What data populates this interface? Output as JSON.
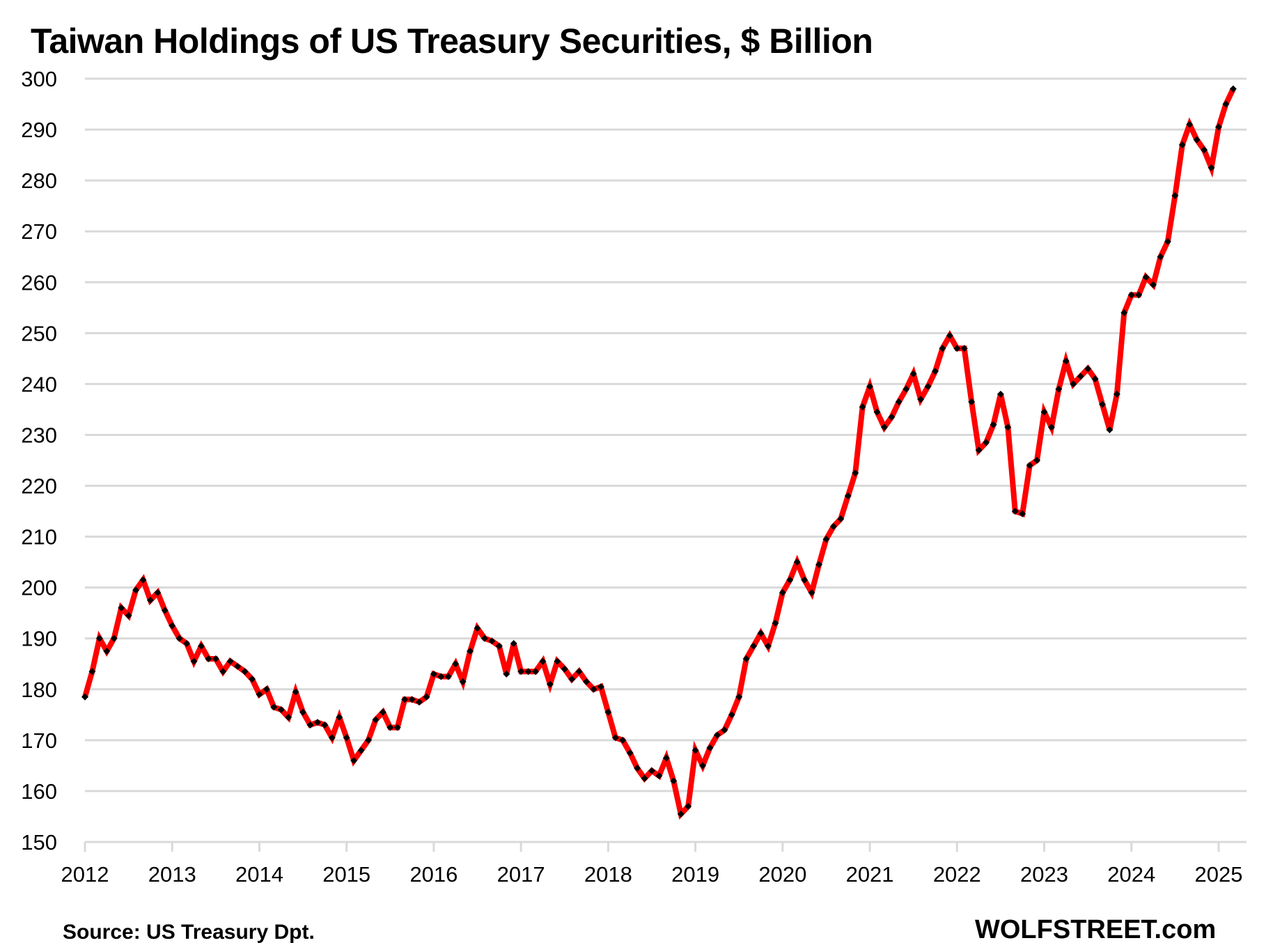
{
  "chart_data": {
    "type": "line",
    "title": "Taiwan Holdings of US Treasury Securities, $ Billion",
    "xlabel": "",
    "ylabel": "",
    "ylim": [
      150,
      300
    ],
    "yticks": [
      "150",
      "160",
      "170",
      "180",
      "190",
      "200",
      "210",
      "220",
      "230",
      "240",
      "250",
      "260",
      "270",
      "280",
      "290",
      "300"
    ],
    "xticks": [
      "2012",
      "2013",
      "2014",
      "2015",
      "2016",
      "2017",
      "2018",
      "2019",
      "2020",
      "2021",
      "2022",
      "2023",
      "2024",
      "2025"
    ],
    "grid": true,
    "legend": "none",
    "x_start": "2012-01",
    "x_frequency": "monthly",
    "series": [
      {
        "name": "Taiwan holdings",
        "color": "#ff0000",
        "marker_color": "#000000",
        "values": [
          178.5,
          183.5,
          190.0,
          187.5,
          190.0,
          196.0,
          194.5,
          199.5,
          201.5,
          197.5,
          199.0,
          195.5,
          192.5,
          190.0,
          189.0,
          185.5,
          188.5,
          186.0,
          186.0,
          183.5,
          185.5,
          184.5,
          183.5,
          182.0,
          179.0,
          180.0,
          176.5,
          176.0,
          174.5,
          179.5,
          175.5,
          173.0,
          173.5,
          173.0,
          170.5,
          174.5,
          170.5,
          166.0,
          168.0,
          170.0,
          174.0,
          175.5,
          172.5,
          172.5,
          178.0,
          178.0,
          177.5,
          178.5,
          183.0,
          182.5,
          182.5,
          185.0,
          181.5,
          187.5,
          192.0,
          190.0,
          189.5,
          188.5,
          183.0,
          189.0,
          183.5,
          183.5,
          183.5,
          185.5,
          181.0,
          185.5,
          184.0,
          182.0,
          183.5,
          181.5,
          180.0,
          180.5,
          175.5,
          170.5,
          170.0,
          167.5,
          164.5,
          162.5,
          164.0,
          163.0,
          166.5,
          162.0,
          155.5,
          157.0,
          168.0,
          165.0,
          168.5,
          171.0,
          172.0,
          175.0,
          178.5,
          186.0,
          188.5,
          191.0,
          188.5,
          193.0,
          199.0,
          201.5,
          205.0,
          201.5,
          199.0,
          204.5,
          209.5,
          212.0,
          213.5,
          218.0,
          222.5,
          235.5,
          239.5,
          234.5,
          231.5,
          233.5,
          236.5,
          239.0,
          242.0,
          237.0,
          239.5,
          242.5,
          247.0,
          249.5,
          247.0,
          247.0,
          236.5,
          227.0,
          228.5,
          232.0,
          238.0,
          231.5,
          215.0,
          214.5,
          224.0,
          225.0,
          234.5,
          231.5,
          239.0,
          244.5,
          240.0,
          241.5,
          243.0,
          241.0,
          236.0,
          231.0,
          238.0,
          254.0,
          257.5,
          257.5,
          261.0,
          259.5,
          265.0,
          268.0,
          277.0,
          287.0,
          291.0,
          288.0,
          286.0,
          282.5,
          290.5,
          295.0,
          298.0
        ]
      }
    ],
    "footer": {
      "source": "Source: US Treasury  Dpt.",
      "brand": "WOLFSTREET.com"
    }
  }
}
